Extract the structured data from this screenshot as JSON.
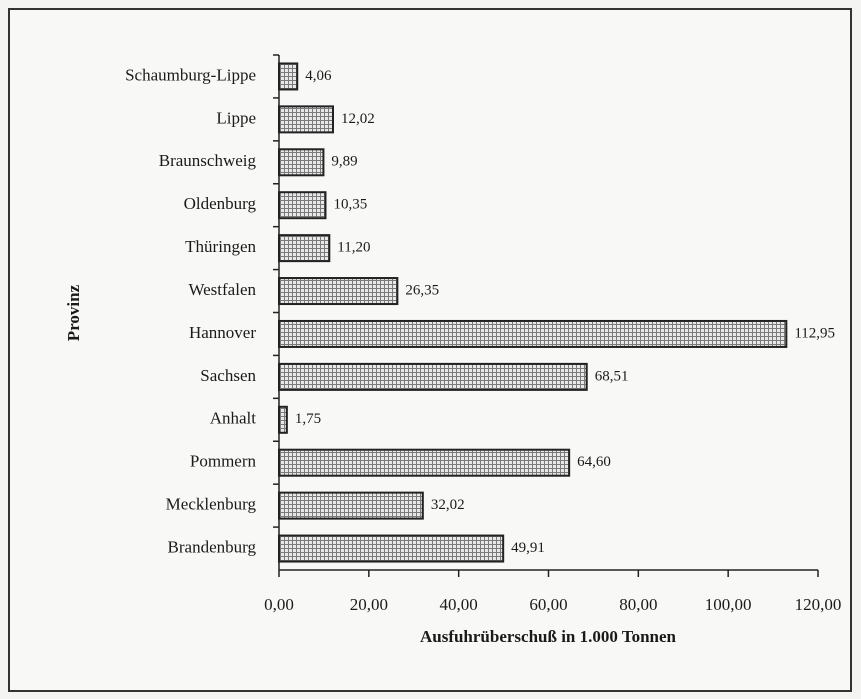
{
  "chart_data": {
    "type": "hbar",
    "xlabel": "Ausfuhrüberschuß in 1.000 Tonnen",
    "ylabel": "Provinz",
    "categories": [
      "Schaumburg-Lippe",
      "Lippe",
      "Braunschweig",
      "Oldenburg",
      "Thüringen",
      "Westfalen",
      "Hannover",
      "Sachsen",
      "Anhalt",
      "Pommern",
      "Mecklenburg",
      "Brandenburg"
    ],
    "values": [
      4.06,
      12.02,
      9.89,
      10.35,
      11.2,
      26.35,
      112.95,
      68.51,
      1.75,
      64.6,
      32.02,
      49.91
    ],
    "value_labels": [
      "4,06",
      "12,02",
      "9,89",
      "10,35",
      "11,20",
      "26,35",
      "112,95",
      "68,51",
      "1,75",
      "64,60",
      "32,02",
      "49,91"
    ],
    "color": "#7a7a7a",
    "xlim": [
      0,
      120
    ],
    "xticks": [
      {
        "value": 0,
        "label": "0,00"
      },
      {
        "value": 20,
        "label": "20,00"
      },
      {
        "value": 40,
        "label": "40,00"
      },
      {
        "value": 60,
        "label": "60,00"
      },
      {
        "value": 80,
        "label": "80,00"
      },
      {
        "value": 100,
        "label": "100,00"
      },
      {
        "value": 120,
        "label": "120,00"
      }
    ],
    "grid": false
  }
}
